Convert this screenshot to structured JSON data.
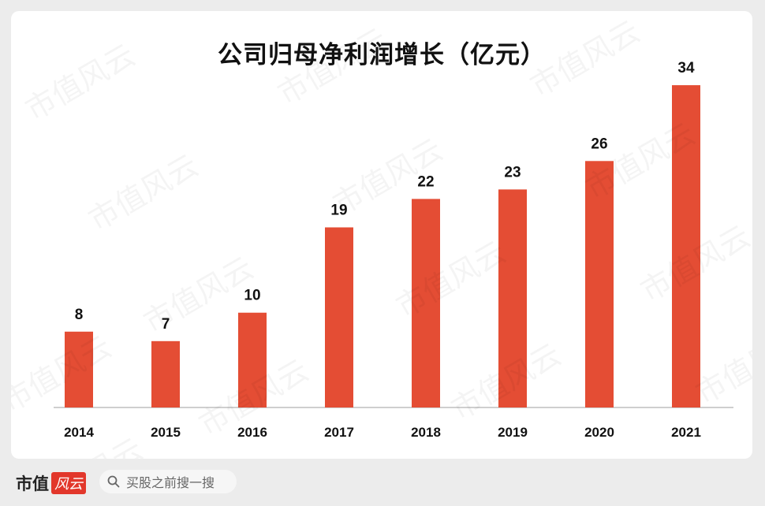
{
  "chart_data": {
    "type": "bar",
    "title": "公司归母净利润增长（亿元）",
    "categories": [
      "2014",
      "2015",
      "2016",
      "2017",
      "2018",
      "2019",
      "2020",
      "2021"
    ],
    "values": [
      8,
      7,
      10,
      19,
      22,
      23,
      26,
      34
    ],
    "data_labels": [
      "8",
      "7",
      "10",
      "19",
      "22",
      "23",
      "26",
      "34"
    ],
    "xlabel": "",
    "ylabel": "",
    "ylim": [
      0,
      37
    ],
    "grid": false,
    "legend": "none",
    "bar_color": "#e44d34"
  },
  "watermark": {
    "text": "市值风云"
  },
  "footer": {
    "brand": "市值",
    "brand_badge": "风云",
    "search_placeholder": "买股之前搜一搜"
  }
}
